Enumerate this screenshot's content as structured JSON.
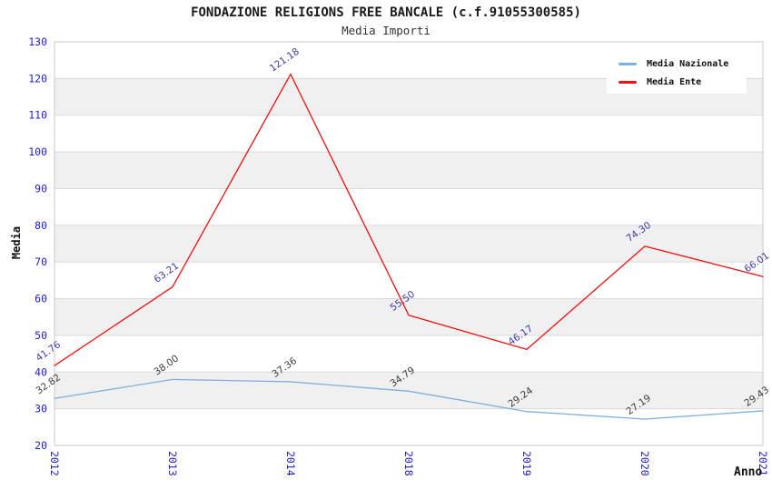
{
  "title": "FONDAZIONE RELIGIONS FREE BANCALE (c.f.91055300585)",
  "subtitle": "Media Importi",
  "axes": {
    "x_label": "Anno",
    "y_label": "Media",
    "tick_label_color": "#2121cc"
  },
  "legend": {
    "position": "top-right"
  },
  "chart_data": {
    "type": "line",
    "title": "FONDAZIONE RELIGIONS FREE BANCALE (c.f.91055300585)",
    "subtitle": "Media Importi",
    "categories": [
      "2012",
      "2013",
      "2014",
      "2018",
      "2019",
      "2020",
      "2021"
    ],
    "series": [
      {
        "name": "Media Nazionale",
        "color": "#7db0e0",
        "label_color": "#3d3d3d",
        "values": [
          32.82,
          38.0,
          37.36,
          34.79,
          29.24,
          27.19,
          29.43
        ]
      },
      {
        "name": "Media Ente",
        "color": "#ee1111",
        "label_color": "#3b3ba6",
        "values": [
          41.76,
          63.21,
          121.18,
          55.5,
          46.17,
          74.3,
          66.01
        ]
      }
    ],
    "xlabel": "Anno",
    "ylabel": "Media",
    "ylim": [
      20,
      130
    ],
    "ytick_step": 10,
    "grid": "horizontal",
    "band_fill": "#f0f0f0",
    "gridline_color": "#d9d9d9",
    "plot_border_color": "#c9c9c9",
    "legend_position": "top-right",
    "value_label_decimals": 2
  }
}
